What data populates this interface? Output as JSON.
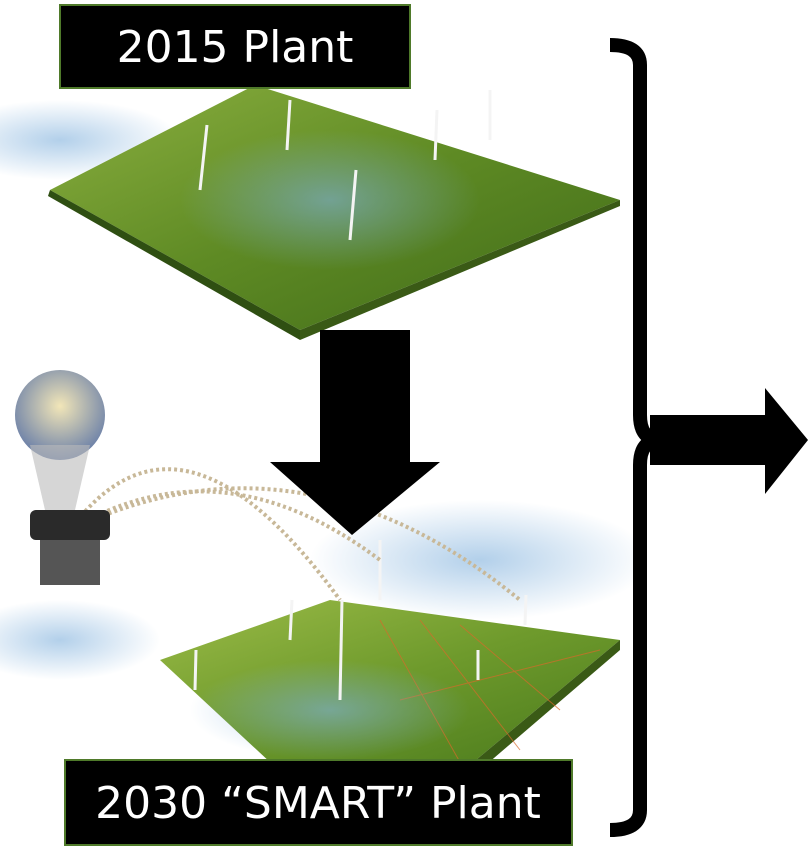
{
  "labels": {
    "top": "2015 Plant",
    "bottom": "2030 “SMART” Plant"
  }
}
